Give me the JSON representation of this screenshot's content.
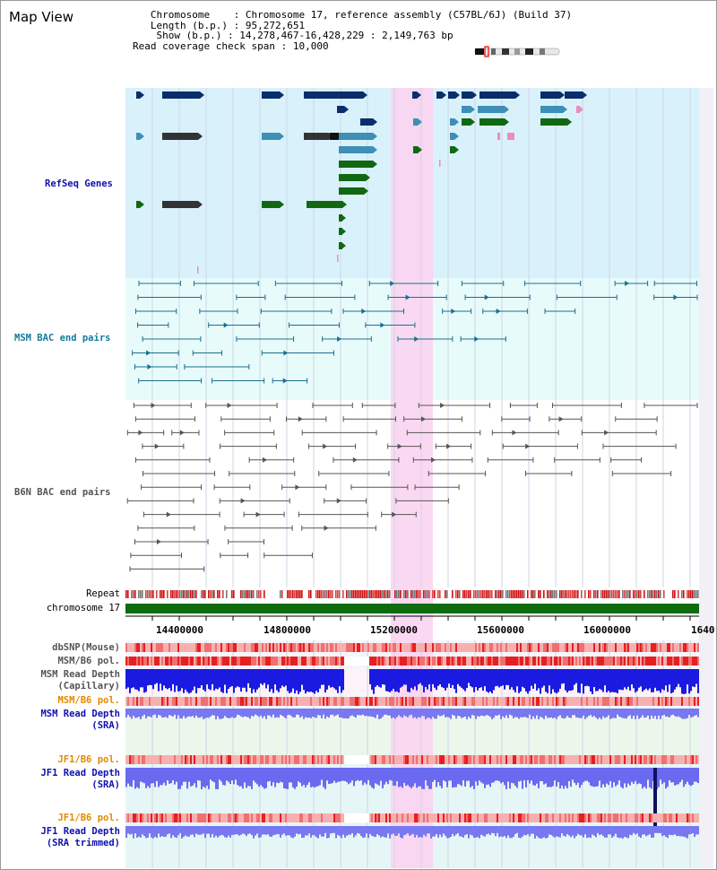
{
  "app": {
    "title": "Map View"
  },
  "info": {
    "chromosome_key": "Chromosome",
    "chromosome_value": "Chromosome 17, reference assembly (C57BL/6J) (Build 37)",
    "length_key": "Length (b.p.)",
    "length_value": "95,272,651",
    "show_key": "Show (b.p.)",
    "show_value": "14,278,467-16,428,229 : 2,149,763 bp",
    "span_key": "Read coverage check span",
    "span_value": "10,000"
  },
  "tracks": {
    "refseq": "RefSeq Genes",
    "msm_bac": "MSM BAC end pairs",
    "b6n_bac": "B6N BAC end pairs",
    "repeat": "Repeat",
    "chromosome": "chromosome 17",
    "dbsnp": "dbSNP(Mouse)",
    "msm_b6_pol_1": "MSM/B6 pol.",
    "msm_depth_cap_1": "MSM Read Depth",
    "msm_depth_cap_2": "(Capillary)",
    "msm_b6_pol_2": "MSM/B6 pol.",
    "msm_depth_sra_1": "MSM Read Depth",
    "msm_depth_sra_2": "(SRA)",
    "jf1_b6_pol_1": "JF1/B6 pol.",
    "jf1_depth_sra_1": "JF1 Read Depth",
    "jf1_depth_sra_2": "(SRA)",
    "jf1_b6_pol_2": "JF1/B6 pol.",
    "jf1_depth_trim_1": "JF1 Read Depth",
    "jf1_depth_trim_2": "(SRA trimmed)"
  },
  "axis": {
    "ticks": [
      "14400000",
      "14800000",
      "15200000",
      "15600000",
      "16000000",
      "1640"
    ]
  },
  "colors": {
    "refseq_bg": "#d9f1fb",
    "msm_bac_bg": "#e7fbfb",
    "highlight": "#fbd4f1",
    "navy": "#0b2e6b",
    "teal": "#3d8fb5",
    "green": "#126812",
    "chromosome": "#0e6b0e",
    "depth_blue": "#1a1ae0",
    "depth_light": "#7878f0"
  }
}
